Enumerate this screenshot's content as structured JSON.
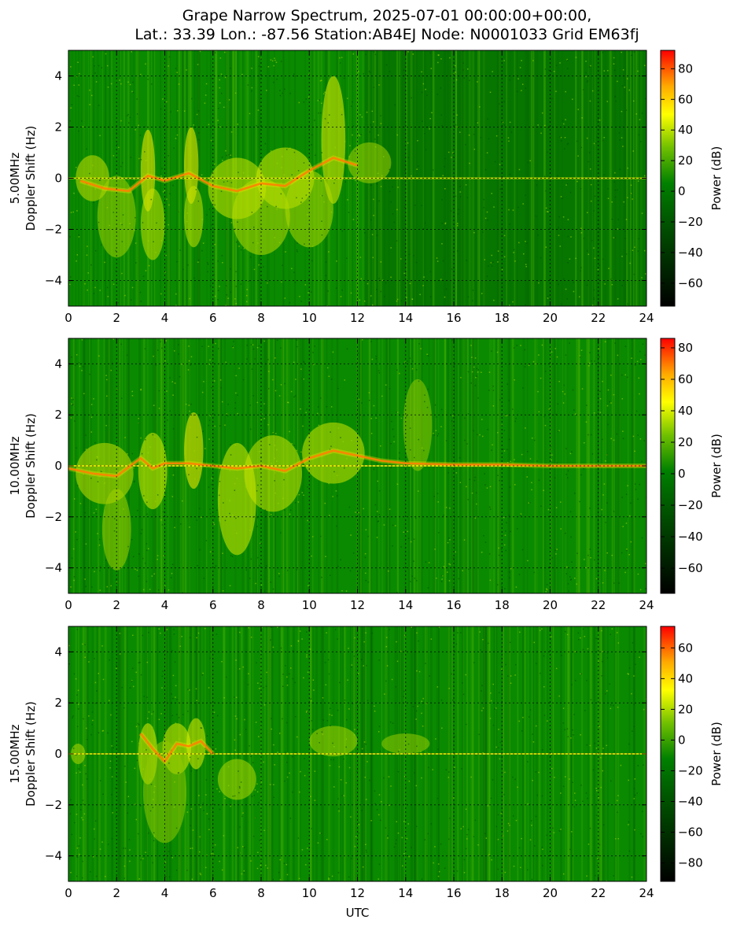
{
  "title_line1": "Grape Narrow Spectrum, 2025-07-01 00:00:00+00:00,",
  "title_line2": "Lat.: 33.39 Lon.: -87.56 Station:AB4EJ Node: N0001033 Grid EM63fj",
  "chart_data": [
    {
      "type": "heatmap",
      "ylabel_line1": "5.00MHz",
      "ylabel_line2": "Doppler Shift (Hz)",
      "xlabel": "",
      "xlim": [
        0,
        24
      ],
      "ylim": [
        -5,
        5
      ],
      "x_ticks": [
        0,
        2,
        4,
        6,
        8,
        10,
        12,
        14,
        16,
        18,
        20,
        22,
        24
      ],
      "y_ticks": [
        -4,
        -2,
        0,
        2,
        4
      ],
      "grid": true,
      "colorbar": {
        "label": "Power (dB)",
        "range": [
          -75,
          92
        ],
        "ticks": [
          -60,
          -40,
          -20,
          0,
          20,
          40,
          60,
          80
        ]
      }
    },
    {
      "type": "heatmap",
      "ylabel_line1": "10.00MHz",
      "ylabel_line2": "Doppler Shift (Hz)",
      "xlabel": "",
      "xlim": [
        0,
        24
      ],
      "ylim": [
        -5,
        5
      ],
      "x_ticks": [
        0,
        2,
        4,
        6,
        8,
        10,
        12,
        14,
        16,
        18,
        20,
        22,
        24
      ],
      "y_ticks": [
        -4,
        -2,
        0,
        2,
        4
      ],
      "grid": true,
      "colorbar": {
        "label": "Power (dB)",
        "range": [
          -76,
          86
        ],
        "ticks": [
          -60,
          -40,
          -20,
          0,
          20,
          40,
          60,
          80
        ]
      }
    },
    {
      "type": "heatmap",
      "ylabel_line1": "15.00MHz",
      "ylabel_line2": "Doppler Shift (Hz)",
      "xlabel": "UTC",
      "xlim": [
        0,
        24
      ],
      "ylim": [
        -5,
        5
      ],
      "x_ticks": [
        0,
        2,
        4,
        6,
        8,
        10,
        12,
        14,
        16,
        18,
        20,
        22,
        24
      ],
      "y_ticks": [
        -4,
        -2,
        0,
        2,
        4
      ],
      "grid": true,
      "colorbar": {
        "label": "Power (dB)",
        "range": [
          -92,
          74
        ],
        "ticks": [
          -80,
          -60,
          -40,
          -20,
          0,
          20,
          40,
          60
        ]
      }
    }
  ]
}
